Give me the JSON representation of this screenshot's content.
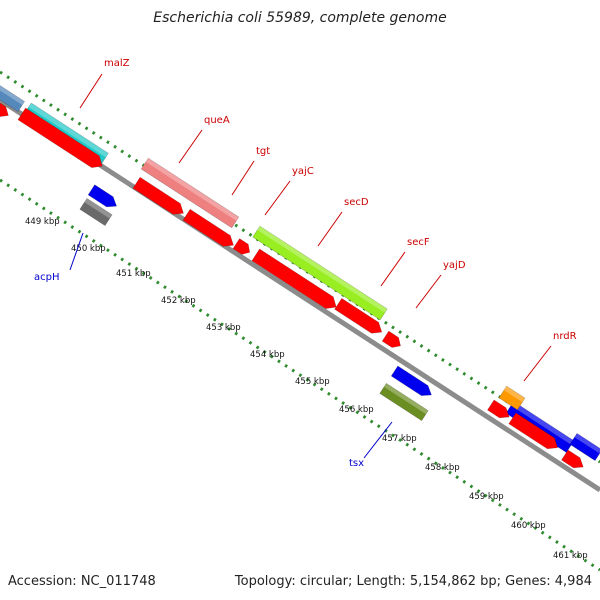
{
  "title": "Escherichia coli 55989, complete genome",
  "accession_text": "Accession: NC_011748",
  "summary_text": "Topology: circular; Length: 5,154,862 bp; Genes: 4,984",
  "colors": {
    "backbone": "#8c8c8c",
    "tick_dots": "#2e8b2e",
    "label_red": "#cc0000",
    "label_blue": "#0000cc",
    "arrow_red": "#ff0000",
    "arrow_blue": "#0000ee",
    "cyan": "#20c8c8",
    "salmon": "#ef8080",
    "lime": "#99ee22",
    "steel": "#5588bb",
    "gray": "#6a6a6a",
    "olive": "#6b8e23",
    "orange": "#ff9900"
  },
  "scale_labels": [
    "449 kbp",
    "450 kbp",
    "451 kbp",
    "452 kbp",
    "453 kbp",
    "454 kbp",
    "455 kbp",
    "456 kbp",
    "457 kbp",
    "458 kbp",
    "459 kbp",
    "460 kbp",
    "461 kbp"
  ],
  "gene_labels": [
    {
      "name": "malZ",
      "color": "label_red"
    },
    {
      "name": "queA",
      "color": "label_red"
    },
    {
      "name": "tgt",
      "color": "label_red"
    },
    {
      "name": "yajC",
      "color": "label_red"
    },
    {
      "name": "secD",
      "color": "label_red"
    },
    {
      "name": "secF",
      "color": "label_red"
    },
    {
      "name": "yajD",
      "color": "label_red"
    },
    {
      "name": "nrdR",
      "color": "label_red"
    },
    {
      "name": "acpH",
      "color": "label_blue"
    },
    {
      "name": "tsx",
      "color": "label_blue"
    }
  ]
}
